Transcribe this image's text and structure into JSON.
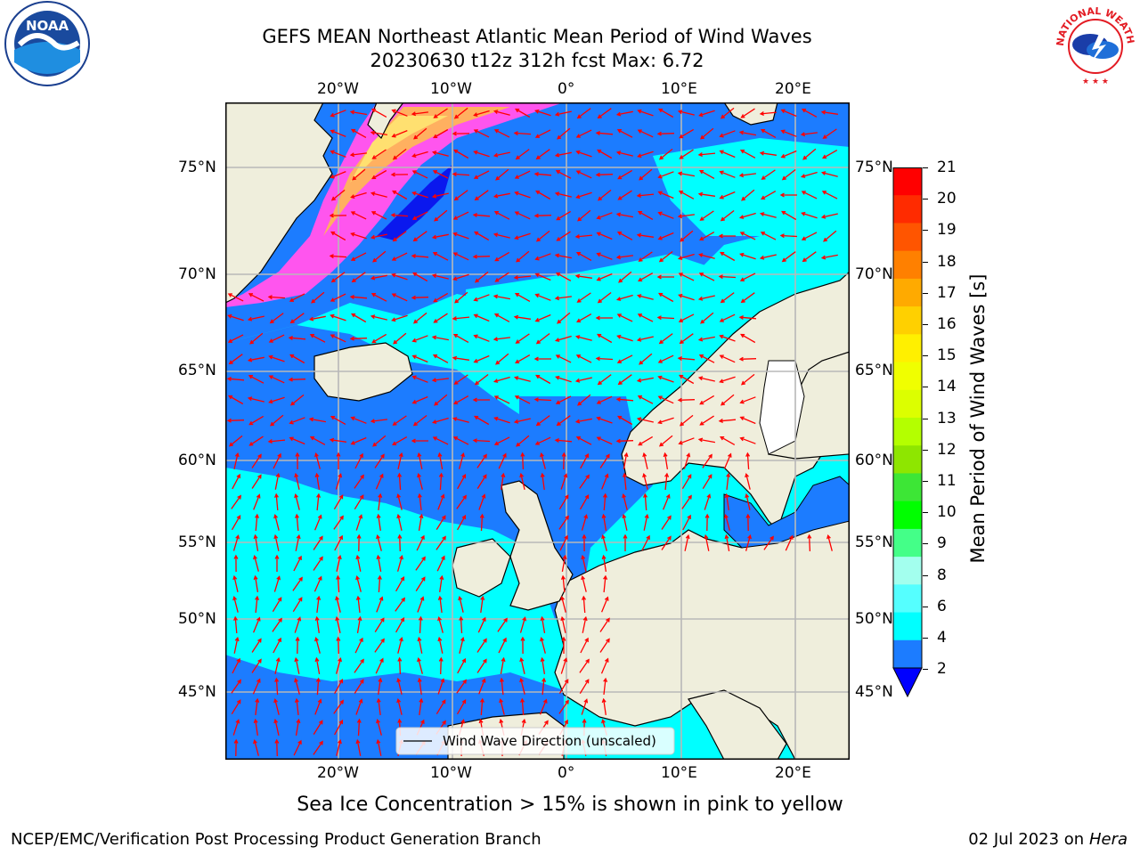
{
  "header": {
    "title_line1": "GEFS MEAN Northeast Atlantic Mean Period of Wind Waves",
    "title_line2": "20230630 t12z 312h fcst    Max: 6.72"
  },
  "logos": {
    "left": "NOAA",
    "right": "NATIONAL WEATHER SERVICE"
  },
  "map": {
    "lon_ticks": [
      "20°W",
      "10°W",
      "0°",
      "10°E",
      "20°E"
    ],
    "lat_ticks": [
      "75°N",
      "70°N",
      "65°N",
      "60°N",
      "55°N",
      "50°N",
      "45°N"
    ],
    "legend_label": "Wind Wave Direction (unscaled)",
    "colors": {
      "land": "#efeedc",
      "ocean_low": "#1c7cff",
      "ocean_mid": "#00ffff",
      "ocean_deep": "#0a18ee",
      "ice_pink": "#ff55ee",
      "ice_orange": "#ffb060",
      "ice_yellow": "#ffe070",
      "arrow": "#ff0000",
      "grid": "#b8b8b8"
    }
  },
  "colorbar": {
    "label": "Mean Period of Wind Waves [s]",
    "ticks": [
      "21",
      "20",
      "19",
      "18",
      "17",
      "16",
      "15",
      "14",
      "13",
      "12",
      "11",
      "10",
      "9",
      "8",
      "6",
      "4",
      "2"
    ],
    "segment_colors": [
      "#ff0000",
      "#ff2b00",
      "#ff5500",
      "#ff8000",
      "#ffaa00",
      "#ffd000",
      "#fff000",
      "#f0ff00",
      "#dcff00",
      "#b4ff00",
      "#8ee600",
      "#3de636",
      "#00ff00",
      "#44ff88",
      "#a3ffee",
      "#55ffff",
      "#00ffff",
      "#1c7cff",
      "#0000ff"
    ]
  },
  "caption": "Sea Ice Concentration > 15% is shown in pink to yellow",
  "footer": {
    "left": "NCEP/EMC/Verification Post Processing Product Generation Branch",
    "right_date": "02 Jul 2023 on ",
    "right_host": "Hera"
  }
}
